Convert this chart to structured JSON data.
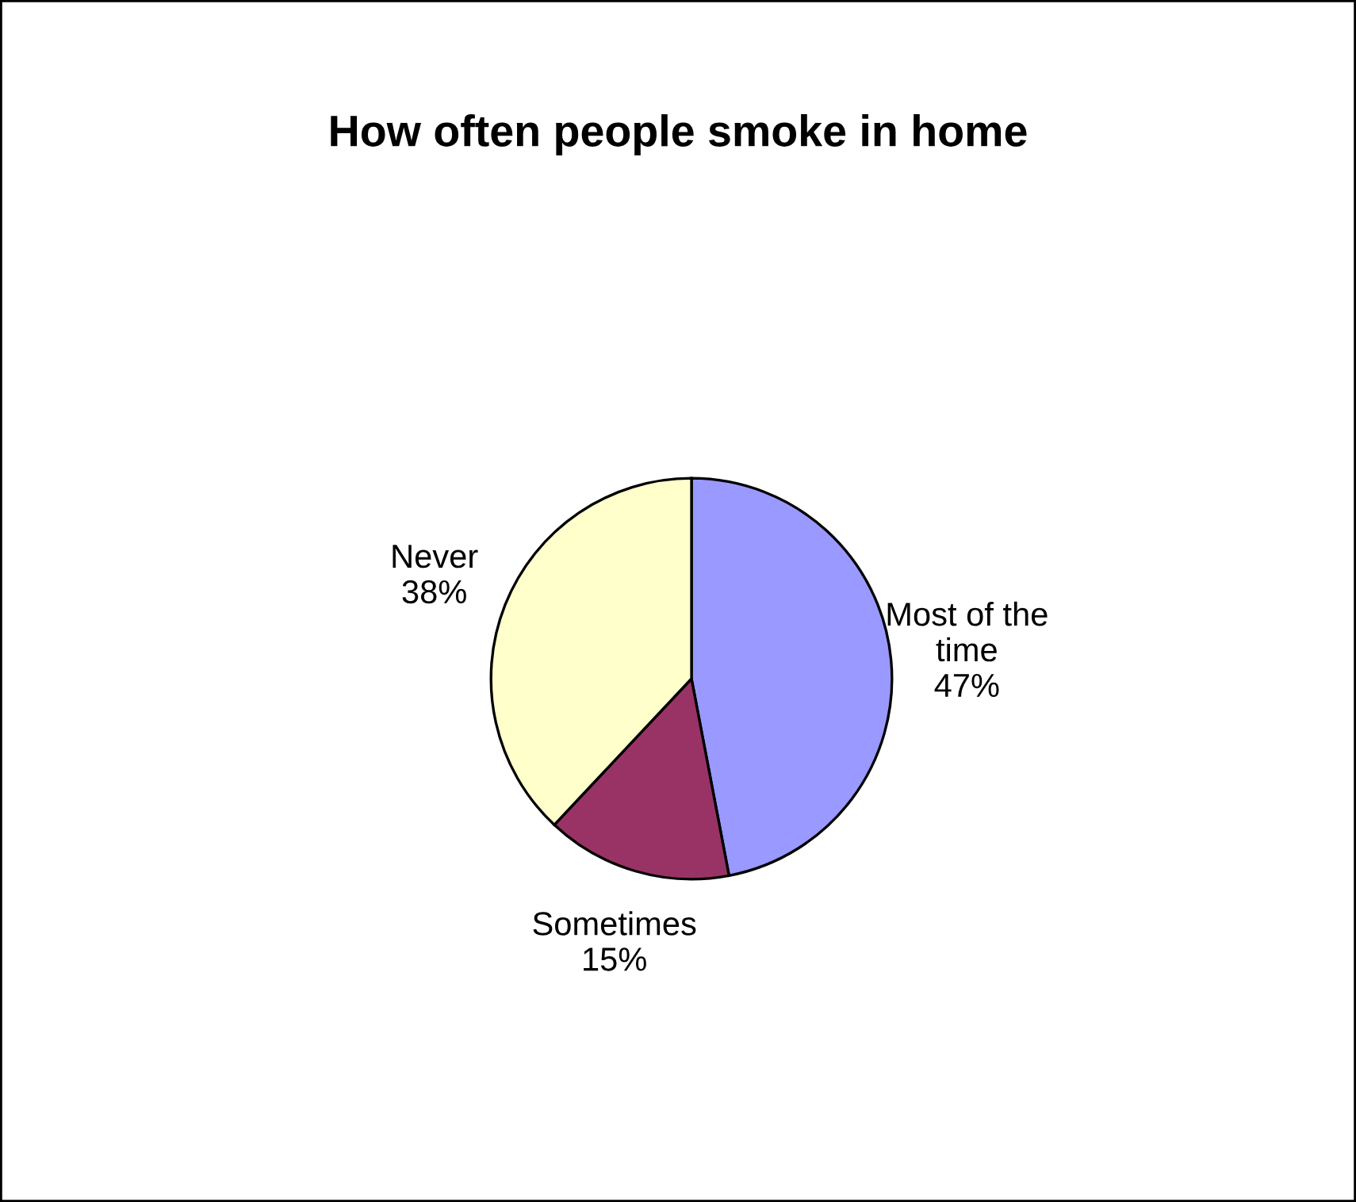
{
  "chart_data": {
    "type": "pie",
    "title": "How often people smoke in home",
    "categories": [
      "Most of the\ntime",
      "Sometimes",
      "Never"
    ],
    "values": [
      47,
      15,
      38
    ],
    "value_labels": [
      "47%",
      "15%",
      "38%"
    ],
    "colors": [
      "#9999ff",
      "#993366",
      "#ffffcc"
    ],
    "legend": false
  }
}
